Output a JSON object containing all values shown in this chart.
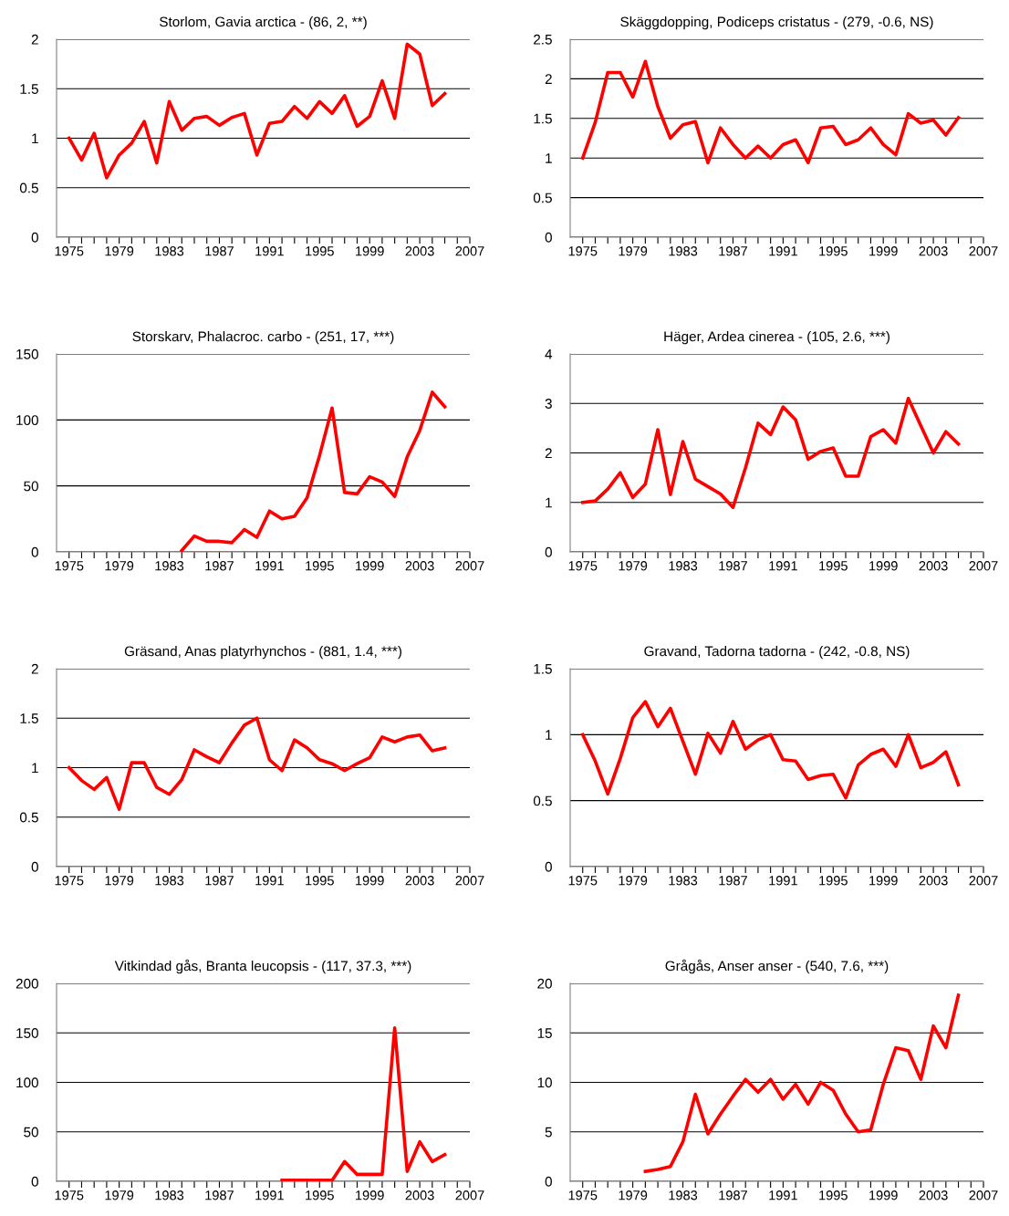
{
  "chart_data": [
    {
      "type": "line",
      "title": "Storlom, Gavia arctica - (86, 2, **)",
      "x": [
        1975,
        1976,
        1977,
        1978,
        1979,
        1980,
        1981,
        1982,
        1983,
        1984,
        1985,
        1986,
        1987,
        1988,
        1989,
        1990,
        1991,
        1992,
        1993,
        1994,
        1995,
        1996,
        1997,
        1998,
        1999,
        2000,
        2001,
        2002,
        2003,
        2004,
        2005
      ],
      "series": [
        {
          "color": "#ff0000",
          "values": [
            1.0,
            0.78,
            1.05,
            0.6,
            0.83,
            0.95,
            1.17,
            0.75,
            1.37,
            1.08,
            1.2,
            1.22,
            1.13,
            1.21,
            1.25,
            0.83,
            1.15,
            1.17,
            1.32,
            1.2,
            1.37,
            1.25,
            1.43,
            1.12,
            1.22,
            1.58,
            1.2,
            1.95,
            1.85,
            1.33,
            1.45
          ]
        }
      ],
      "xlim": [
        1974,
        2007
      ],
      "xticks": [
        1975,
        {
          "value": 1976,
          "label": null
        },
        {
          "value": 1977,
          "label": null
        },
        {
          "value": 1978,
          "label": null
        },
        1979,
        {
          "value": 1980,
          "label": null
        },
        {
          "value": 1981,
          "label": null
        },
        {
          "value": 1982,
          "label": null
        },
        1983,
        {
          "value": 1984,
          "label": null
        },
        {
          "value": 1985,
          "label": null
        },
        {
          "value": 1986,
          "label": null
        },
        1987,
        {
          "value": 1988,
          "label": null
        },
        {
          "value": 1989,
          "label": null
        },
        {
          "value": 1990,
          "label": null
        },
        1991,
        {
          "value": 1992,
          "label": null
        },
        {
          "value": 1993,
          "label": null
        },
        {
          "value": 1994,
          "label": null
        },
        1995,
        {
          "value": 1996,
          "label": null
        },
        {
          "value": 1997,
          "label": null
        },
        {
          "value": 1998,
          "label": null
        },
        1999,
        {
          "value": 2000,
          "label": null
        },
        {
          "value": 2001,
          "label": null
        },
        {
          "value": 2002,
          "label": null
        },
        2003,
        {
          "value": 2004,
          "label": null
        },
        {
          "value": 2005,
          "label": null
        },
        {
          "value": 2006,
          "label": null
        },
        2007
      ],
      "ylim": [
        0,
        2
      ],
      "yticks": [
        0,
        0.5,
        1,
        1.5,
        2
      ],
      "grid": "y",
      "marker": "none",
      "line_style": "solid"
    },
    {
      "type": "line",
      "title": "Skäggdopping, Podiceps cristatus - (279, -0.6, NS)",
      "x": [
        1975,
        1976,
        1977,
        1978,
        1979,
        1980,
        1981,
        1982,
        1983,
        1984,
        1985,
        1986,
        1987,
        1988,
        1989,
        1990,
        1991,
        1992,
        1993,
        1994,
        1995,
        1996,
        1997,
        1998,
        1999,
        2000,
        2001,
        2002,
        2003,
        2004,
        2005
      ],
      "series": [
        {
          "color": "#ff0000",
          "values": [
            1.0,
            1.45,
            2.08,
            2.08,
            1.77,
            2.22,
            1.65,
            1.25,
            1.42,
            1.46,
            0.94,
            1.38,
            1.17,
            1.0,
            1.15,
            1.0,
            1.17,
            1.23,
            0.94,
            1.38,
            1.4,
            1.17,
            1.23,
            1.38,
            1.17,
            1.04,
            1.56,
            1.44,
            1.48,
            1.29,
            1.51
          ]
        }
      ],
      "xlim": [
        1974,
        2007
      ],
      "xticks": [
        1975,
        {
          "value": 1976,
          "label": null
        },
        {
          "value": 1977,
          "label": null
        },
        {
          "value": 1978,
          "label": null
        },
        1979,
        {
          "value": 1980,
          "label": null
        },
        {
          "value": 1981,
          "label": null
        },
        {
          "value": 1982,
          "label": null
        },
        1983,
        {
          "value": 1984,
          "label": null
        },
        {
          "value": 1985,
          "label": null
        },
        {
          "value": 1986,
          "label": null
        },
        1987,
        {
          "value": 1988,
          "label": null
        },
        {
          "value": 1989,
          "label": null
        },
        {
          "value": 1990,
          "label": null
        },
        1991,
        {
          "value": 1992,
          "label": null
        },
        {
          "value": 1993,
          "label": null
        },
        {
          "value": 1994,
          "label": null
        },
        1995,
        {
          "value": 1996,
          "label": null
        },
        {
          "value": 1997,
          "label": null
        },
        {
          "value": 1998,
          "label": null
        },
        1999,
        {
          "value": 2000,
          "label": null
        },
        {
          "value": 2001,
          "label": null
        },
        {
          "value": 2002,
          "label": null
        },
        2003,
        {
          "value": 2004,
          "label": null
        },
        {
          "value": 2005,
          "label": null
        },
        {
          "value": 2006,
          "label": null
        },
        2007
      ],
      "ylim": [
        0,
        2.5
      ],
      "yticks": [
        0,
        0.5,
        1,
        1.5,
        2,
        2.5
      ],
      "grid": "y",
      "marker": "none",
      "line_style": "solid"
    },
    {
      "type": "line",
      "title": "Storskarv, Phalacroc. carbo - (251, 17, ***)",
      "x": [
        1984,
        1985,
        1986,
        1987,
        1988,
        1989,
        1990,
        1991,
        1992,
        1993,
        1994,
        1995,
        1996,
        1997,
        1998,
        1999,
        2000,
        2001,
        2002,
        2003,
        2004,
        2005
      ],
      "series": [
        {
          "color": "#ff0000",
          "values": [
            1,
            12,
            8,
            8,
            7,
            17,
            11,
            31,
            25,
            27,
            41,
            73,
            109,
            45,
            44,
            57,
            53,
            42,
            72,
            92,
            121,
            110
          ]
        }
      ],
      "xlim": [
        1974,
        2007
      ],
      "xticks": [
        1975,
        {
          "value": 1976,
          "label": null
        },
        {
          "value": 1977,
          "label": null
        },
        {
          "value": 1978,
          "label": null
        },
        1979,
        {
          "value": 1980,
          "label": null
        },
        {
          "value": 1981,
          "label": null
        },
        {
          "value": 1982,
          "label": null
        },
        1983,
        {
          "value": 1984,
          "label": null
        },
        {
          "value": 1985,
          "label": null
        },
        {
          "value": 1986,
          "label": null
        },
        1987,
        {
          "value": 1988,
          "label": null
        },
        {
          "value": 1989,
          "label": null
        },
        {
          "value": 1990,
          "label": null
        },
        1991,
        {
          "value": 1992,
          "label": null
        },
        {
          "value": 1993,
          "label": null
        },
        {
          "value": 1994,
          "label": null
        },
        1995,
        {
          "value": 1996,
          "label": null
        },
        {
          "value": 1997,
          "label": null
        },
        {
          "value": 1998,
          "label": null
        },
        1999,
        {
          "value": 2000,
          "label": null
        },
        {
          "value": 2001,
          "label": null
        },
        {
          "value": 2002,
          "label": null
        },
        2003,
        {
          "value": 2004,
          "label": null
        },
        {
          "value": 2005,
          "label": null
        },
        {
          "value": 2006,
          "label": null
        },
        2007
      ],
      "ylim": [
        0,
        150
      ],
      "yticks": [
        0,
        50,
        100,
        150
      ],
      "grid": "y",
      "marker": "none",
      "line_style": "solid"
    },
    {
      "type": "line",
      "title": "Häger, Ardea cinerea - (105, 2.6, ***)",
      "x": [
        1975,
        1976,
        1977,
        1978,
        1979,
        1980,
        1981,
        1982,
        1983,
        1984,
        1985,
        1986,
        1987,
        1988,
        1989,
        1990,
        1991,
        1992,
        1993,
        1994,
        1995,
        1996,
        1997,
        1998,
        1999,
        2000,
        2001,
        2002,
        2003,
        2004,
        2005
      ],
      "series": [
        {
          "color": "#ff0000",
          "values": [
            1.0,
            1.03,
            1.27,
            1.6,
            1.1,
            1.37,
            2.47,
            1.16,
            2.23,
            1.47,
            1.32,
            1.17,
            0.9,
            1.7,
            2.6,
            2.37,
            2.93,
            2.67,
            1.87,
            2.03,
            2.1,
            1.53,
            1.53,
            2.33,
            2.47,
            2.2,
            3.1,
            2.55,
            2.0,
            2.43,
            2.18
          ]
        }
      ],
      "xlim": [
        1974,
        2007
      ],
      "xticks": [
        1975,
        {
          "value": 1976,
          "label": null
        },
        {
          "value": 1977,
          "label": null
        },
        {
          "value": 1978,
          "label": null
        },
        1979,
        {
          "value": 1980,
          "label": null
        },
        {
          "value": 1981,
          "label": null
        },
        {
          "value": 1982,
          "label": null
        },
        1983,
        {
          "value": 1984,
          "label": null
        },
        {
          "value": 1985,
          "label": null
        },
        {
          "value": 1986,
          "label": null
        },
        1987,
        {
          "value": 1988,
          "label": null
        },
        {
          "value": 1989,
          "label": null
        },
        {
          "value": 1990,
          "label": null
        },
        1991,
        {
          "value": 1992,
          "label": null
        },
        {
          "value": 1993,
          "label": null
        },
        {
          "value": 1994,
          "label": null
        },
        1995,
        {
          "value": 1996,
          "label": null
        },
        {
          "value": 1997,
          "label": null
        },
        {
          "value": 1998,
          "label": null
        },
        1999,
        {
          "value": 2000,
          "label": null
        },
        {
          "value": 2001,
          "label": null
        },
        {
          "value": 2002,
          "label": null
        },
        2003,
        {
          "value": 2004,
          "label": null
        },
        {
          "value": 2005,
          "label": null
        },
        {
          "value": 2006,
          "label": null
        },
        2007
      ],
      "ylim": [
        0,
        4
      ],
      "yticks": [
        0,
        1,
        2,
        3,
        4
      ],
      "grid": "y",
      "marker": "none",
      "line_style": "solid"
    },
    {
      "type": "line",
      "title": "Gräsand, Anas platyrhynchos - (881, 1.4, ***)",
      "x": [
        1975,
        1976,
        1977,
        1978,
        1979,
        1980,
        1981,
        1982,
        1983,
        1984,
        1985,
        1986,
        1987,
        1988,
        1989,
        1990,
        1991,
        1992,
        1993,
        1994,
        1995,
        1996,
        1997,
        1998,
        1999,
        2000,
        2001,
        2002,
        2003,
        2004,
        2005
      ],
      "series": [
        {
          "color": "#ff0000",
          "values": [
            1.0,
            0.87,
            0.78,
            0.9,
            0.58,
            1.05,
            1.05,
            0.8,
            0.73,
            0.88,
            1.18,
            1.11,
            1.05,
            1.25,
            1.43,
            1.5,
            1.08,
            0.97,
            1.28,
            1.2,
            1.08,
            1.04,
            0.97,
            1.04,
            1.1,
            1.31,
            1.26,
            1.31,
            1.33,
            1.17,
            1.2
          ]
        }
      ],
      "xlim": [
        1974,
        2007
      ],
      "xticks": [
        1975,
        {
          "value": 1976,
          "label": null
        },
        {
          "value": 1977,
          "label": null
        },
        {
          "value": 1978,
          "label": null
        },
        1979,
        {
          "value": 1980,
          "label": null
        },
        {
          "value": 1981,
          "label": null
        },
        {
          "value": 1982,
          "label": null
        },
        1983,
        {
          "value": 1984,
          "label": null
        },
        {
          "value": 1985,
          "label": null
        },
        {
          "value": 1986,
          "label": null
        },
        1987,
        {
          "value": 1988,
          "label": null
        },
        {
          "value": 1989,
          "label": null
        },
        {
          "value": 1990,
          "label": null
        },
        1991,
        {
          "value": 1992,
          "label": null
        },
        {
          "value": 1993,
          "label": null
        },
        {
          "value": 1994,
          "label": null
        },
        1995,
        {
          "value": 1996,
          "label": null
        },
        {
          "value": 1997,
          "label": null
        },
        {
          "value": 1998,
          "label": null
        },
        1999,
        {
          "value": 2000,
          "label": null
        },
        {
          "value": 2001,
          "label": null
        },
        {
          "value": 2002,
          "label": null
        },
        2003,
        {
          "value": 2004,
          "label": null
        },
        {
          "value": 2005,
          "label": null
        },
        {
          "value": 2006,
          "label": null
        },
        2007
      ],
      "ylim": [
        0,
        2
      ],
      "yticks": [
        0,
        0.5,
        1,
        1.5,
        2
      ],
      "grid": "y",
      "marker": "none",
      "line_style": "solid"
    },
    {
      "type": "line",
      "title": "Gravand, Tadorna tadorna - (242, -0.8, NS)",
      "x": [
        1975,
        1976,
        1977,
        1978,
        1979,
        1980,
        1981,
        1982,
        1983,
        1984,
        1985,
        1986,
        1987,
        1988,
        1989,
        1990,
        1991,
        1992,
        1993,
        1994,
        1995,
        1996,
        1997,
        1998,
        1999,
        2000,
        2001,
        2002,
        2003,
        2004,
        2005
      ],
      "series": [
        {
          "color": "#ff0000",
          "values": [
            1.0,
            0.8,
            0.55,
            0.82,
            1.13,
            1.25,
            1.06,
            1.2,
            0.95,
            0.7,
            1.01,
            0.86,
            1.1,
            0.89,
            0.96,
            1.0,
            0.81,
            0.8,
            0.66,
            0.69,
            0.7,
            0.52,
            0.77,
            0.85,
            0.89,
            0.76,
            1.0,
            0.75,
            0.79,
            0.87,
            0.62
          ]
        }
      ],
      "xlim": [
        1974,
        2007
      ],
      "xticks": [
        1975,
        {
          "value": 1976,
          "label": null
        },
        {
          "value": 1977,
          "label": null
        },
        {
          "value": 1978,
          "label": null
        },
        1979,
        {
          "value": 1980,
          "label": null
        },
        {
          "value": 1981,
          "label": null
        },
        {
          "value": 1982,
          "label": null
        },
        1983,
        {
          "value": 1984,
          "label": null
        },
        {
          "value": 1985,
          "label": null
        },
        {
          "value": 1986,
          "label": null
        },
        1987,
        {
          "value": 1988,
          "label": null
        },
        {
          "value": 1989,
          "label": null
        },
        {
          "value": 1990,
          "label": null
        },
        1991,
        {
          "value": 1992,
          "label": null
        },
        {
          "value": 1993,
          "label": null
        },
        {
          "value": 1994,
          "label": null
        },
        1995,
        {
          "value": 1996,
          "label": null
        },
        {
          "value": 1997,
          "label": null
        },
        {
          "value": 1998,
          "label": null
        },
        1999,
        {
          "value": 2000,
          "label": null
        },
        {
          "value": 2001,
          "label": null
        },
        {
          "value": 2002,
          "label": null
        },
        2003,
        {
          "value": 2004,
          "label": null
        },
        {
          "value": 2005,
          "label": null
        },
        {
          "value": 2006,
          "label": null
        },
        2007
      ],
      "ylim": [
        0,
        1.5
      ],
      "yticks": [
        0,
        0.5,
        1,
        1.5
      ],
      "grid": "y",
      "marker": "none",
      "line_style": "solid"
    },
    {
      "type": "line",
      "title": "Vitkindad gås, Branta leucopsis - (117, 37.3, ***)",
      "x": [
        1992,
        1993,
        1994,
        1995,
        1996,
        1997,
        1998,
        1999,
        2000,
        2001,
        2002,
        2003,
        2004,
        2005
      ],
      "series": [
        {
          "color": "#ff0000",
          "values": [
            1,
            1,
            1,
            1,
            1,
            20,
            7,
            7,
            7,
            155,
            10,
            40,
            20,
            27
          ]
        }
      ],
      "xlim": [
        1974,
        2007
      ],
      "xticks": [
        1975,
        {
          "value": 1976,
          "label": null
        },
        {
          "value": 1977,
          "label": null
        },
        {
          "value": 1978,
          "label": null
        },
        1979,
        {
          "value": 1980,
          "label": null
        },
        {
          "value": 1981,
          "label": null
        },
        {
          "value": 1982,
          "label": null
        },
        1983,
        {
          "value": 1984,
          "label": null
        },
        {
          "value": 1985,
          "label": null
        },
        {
          "value": 1986,
          "label": null
        },
        1987,
        {
          "value": 1988,
          "label": null
        },
        {
          "value": 1989,
          "label": null
        },
        {
          "value": 1990,
          "label": null
        },
        1991,
        {
          "value": 1992,
          "label": null
        },
        {
          "value": 1993,
          "label": null
        },
        {
          "value": 1994,
          "label": null
        },
        1995,
        {
          "value": 1996,
          "label": null
        },
        {
          "value": 1997,
          "label": null
        },
        {
          "value": 1998,
          "label": null
        },
        1999,
        {
          "value": 2000,
          "label": null
        },
        {
          "value": 2001,
          "label": null
        },
        {
          "value": 2002,
          "label": null
        },
        2003,
        {
          "value": 2004,
          "label": null
        },
        {
          "value": 2005,
          "label": null
        },
        {
          "value": 2006,
          "label": null
        },
        2007
      ],
      "ylim": [
        0,
        200
      ],
      "yticks": [
        0,
        50,
        100,
        150,
        200
      ],
      "grid": "y",
      "marker": "none",
      "line_style": "solid"
    },
    {
      "type": "line",
      "title": "Grågås, Anser anser - (540, 7.6, ***)",
      "x": [
        1980,
        1981,
        1982,
        1983,
        1984,
        1985,
        1986,
        1987,
        1988,
        1989,
        1990,
        1991,
        1992,
        1993,
        1994,
        1995,
        1996,
        1997,
        1998,
        1999,
        2000,
        2001,
        2002,
        2003,
        2004,
        2005
      ],
      "series": [
        {
          "color": "#ff0000",
          "values": [
            1.0,
            1.2,
            1.5,
            4.0,
            8.8,
            4.8,
            6.8,
            8.6,
            10.3,
            9.0,
            10.3,
            8.3,
            9.8,
            7.8,
            10.0,
            9.2,
            6.8,
            5.0,
            5.2,
            9.8,
            13.5,
            13.2,
            10.3,
            15.7,
            13.5,
            18.8
          ]
        }
      ],
      "xlim": [
        1974,
        2007
      ],
      "xticks": [
        1975,
        {
          "value": 1976,
          "label": null
        },
        {
          "value": 1977,
          "label": null
        },
        {
          "value": 1978,
          "label": null
        },
        1979,
        {
          "value": 1980,
          "label": null
        },
        {
          "value": 1981,
          "label": null
        },
        {
          "value": 1982,
          "label": null
        },
        1983,
        {
          "value": 1984,
          "label": null
        },
        {
          "value": 1985,
          "label": null
        },
        {
          "value": 1986,
          "label": null
        },
        1987,
        {
          "value": 1988,
          "label": null
        },
        {
          "value": 1989,
          "label": null
        },
        {
          "value": 1990,
          "label": null
        },
        1991,
        {
          "value": 1992,
          "label": null
        },
        {
          "value": 1993,
          "label": null
        },
        {
          "value": 1994,
          "label": null
        },
        1995,
        {
          "value": 1996,
          "label": null
        },
        {
          "value": 1997,
          "label": null
        },
        {
          "value": 1998,
          "label": null
        },
        1999,
        {
          "value": 2000,
          "label": null
        },
        {
          "value": 2001,
          "label": null
        },
        {
          "value": 2002,
          "label": null
        },
        2003,
        {
          "value": 2004,
          "label": null
        },
        {
          "value": 2005,
          "label": null
        },
        {
          "value": 2006,
          "label": null
        },
        2007
      ],
      "ylim": [
        0,
        20
      ],
      "yticks": [
        0,
        5,
        10,
        15,
        20
      ],
      "grid": "y",
      "marker": "none",
      "line_style": "solid"
    }
  ]
}
